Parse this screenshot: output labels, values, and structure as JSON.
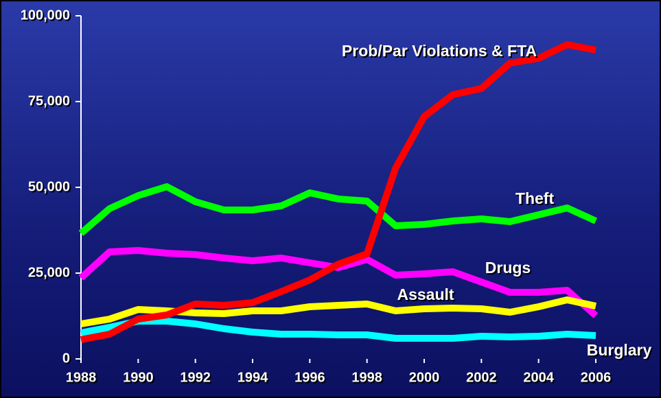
{
  "chart_data": {
    "type": "line",
    "x": [
      1988,
      1989,
      1990,
      1991,
      1992,
      1993,
      1994,
      1995,
      1996,
      1997,
      1998,
      1999,
      2000,
      2001,
      2002,
      2003,
      2004,
      2005,
      2006
    ],
    "xlim": [
      1988,
      2006
    ],
    "xticks": [
      1988,
      1990,
      1992,
      1994,
      1996,
      1998,
      2000,
      2002,
      2004,
      2006
    ],
    "ylim": [
      0,
      100000
    ],
    "yticks": [
      {
        "value": 0,
        "label": "0"
      },
      {
        "value": 25000,
        "label": "25,000"
      },
      {
        "value": 50000,
        "label": "50,000"
      },
      {
        "value": 75000,
        "label": "75,000"
      },
      {
        "value": 100000,
        "label": "100,000"
      }
    ],
    "series": [
      {
        "name": "Theft",
        "color": "#00ff00",
        "values": [
          36600,
          43800,
          47600,
          50200,
          45800,
          43400,
          43400,
          44600,
          48400,
          46600,
          46000,
          38800,
          39200,
          40200,
          40800,
          40000,
          42000,
          44000,
          40200
        ]
      },
      {
        "name": "Drugs",
        "color": "#ff00ff",
        "values": [
          23600,
          31200,
          31600,
          30800,
          30400,
          29400,
          28600,
          29400,
          28000,
          26600,
          29000,
          24400,
          24800,
          25400,
          22400,
          19400,
          19400,
          20000,
          12600
        ]
      },
      {
        "name": "Burglary",
        "color": "#00ffff",
        "values": [
          7600,
          9200,
          11000,
          11000,
          10200,
          8800,
          7800,
          7200,
          7200,
          7000,
          7000,
          6000,
          6000,
          6000,
          6600,
          6400,
          6600,
          7200,
          6800
        ]
      },
      {
        "name": "Assault",
        "color": "#ffff00",
        "values": [
          10200,
          11600,
          14400,
          14000,
          13400,
          13200,
          14000,
          14000,
          15200,
          15600,
          16000,
          14000,
          14600,
          14800,
          14600,
          13600,
          15200,
          17200,
          15400
        ]
      },
      {
        "name": "Prob/Par Violations & FTA",
        "color": "#ff0000",
        "values": [
          5600,
          7200,
          11600,
          12800,
          16000,
          15600,
          16400,
          19600,
          23000,
          27600,
          30600,
          55600,
          70600,
          77000,
          78800,
          86200,
          87600,
          91600,
          90000
        ]
      }
    ]
  }
}
